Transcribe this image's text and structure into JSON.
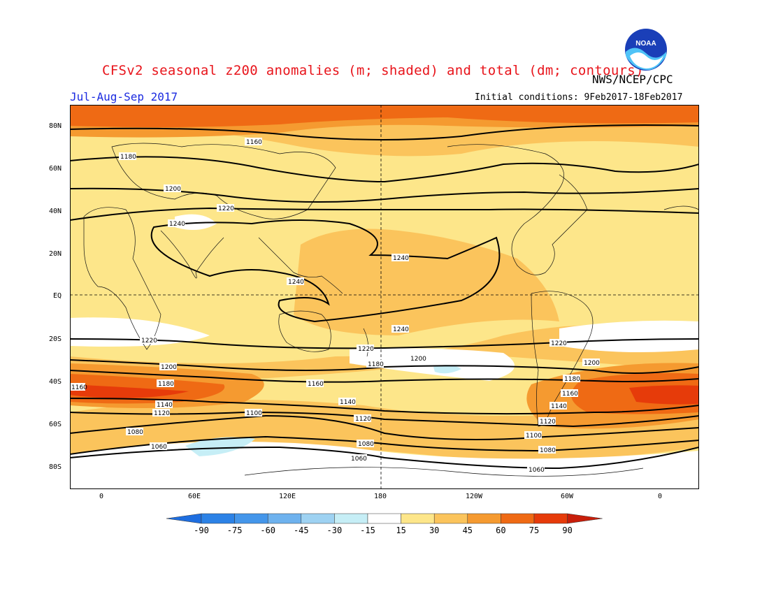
{
  "header": {
    "title": "CFSv2 seasonal z200 anomalies (m; shaded) and total (dm; contours)",
    "org": "NWS/NCEP/CPC",
    "period": "Jul-Aug-Sep 2017",
    "initial_conditions": "Initial conditions: 9Feb2017-18Feb2017",
    "logo_text": "NOAA"
  },
  "axes": {
    "lat_labels": [
      "80N",
      "60N",
      "40N",
      "20N",
      "EQ",
      "20S",
      "40S",
      "60S",
      "80S"
    ],
    "lon_labels": [
      "0",
      "60E",
      "120E",
      "180",
      "120W",
      "60W",
      "0"
    ]
  },
  "colorbar": {
    "ticks": [
      "-90",
      "-75",
      "-60",
      "-45",
      "-30",
      "-15",
      "15",
      "30",
      "45",
      "60",
      "75",
      "90"
    ],
    "colors": [
      "#1e6ee0",
      "#2c82e6",
      "#4496ea",
      "#6eb2ee",
      "#9ed2f2",
      "#c6eef6",
      "#ffffff",
      "#fde68a",
      "#fbc45c",
      "#f59a30",
      "#ef6a14",
      "#e63b0a",
      "#c81e0a"
    ]
  },
  "contours": {
    "labels": [
      "1160",
      "1180",
      "1200",
      "1220",
      "1240",
      "1140",
      "1120",
      "1100",
      "1080",
      "1060"
    ]
  }
}
